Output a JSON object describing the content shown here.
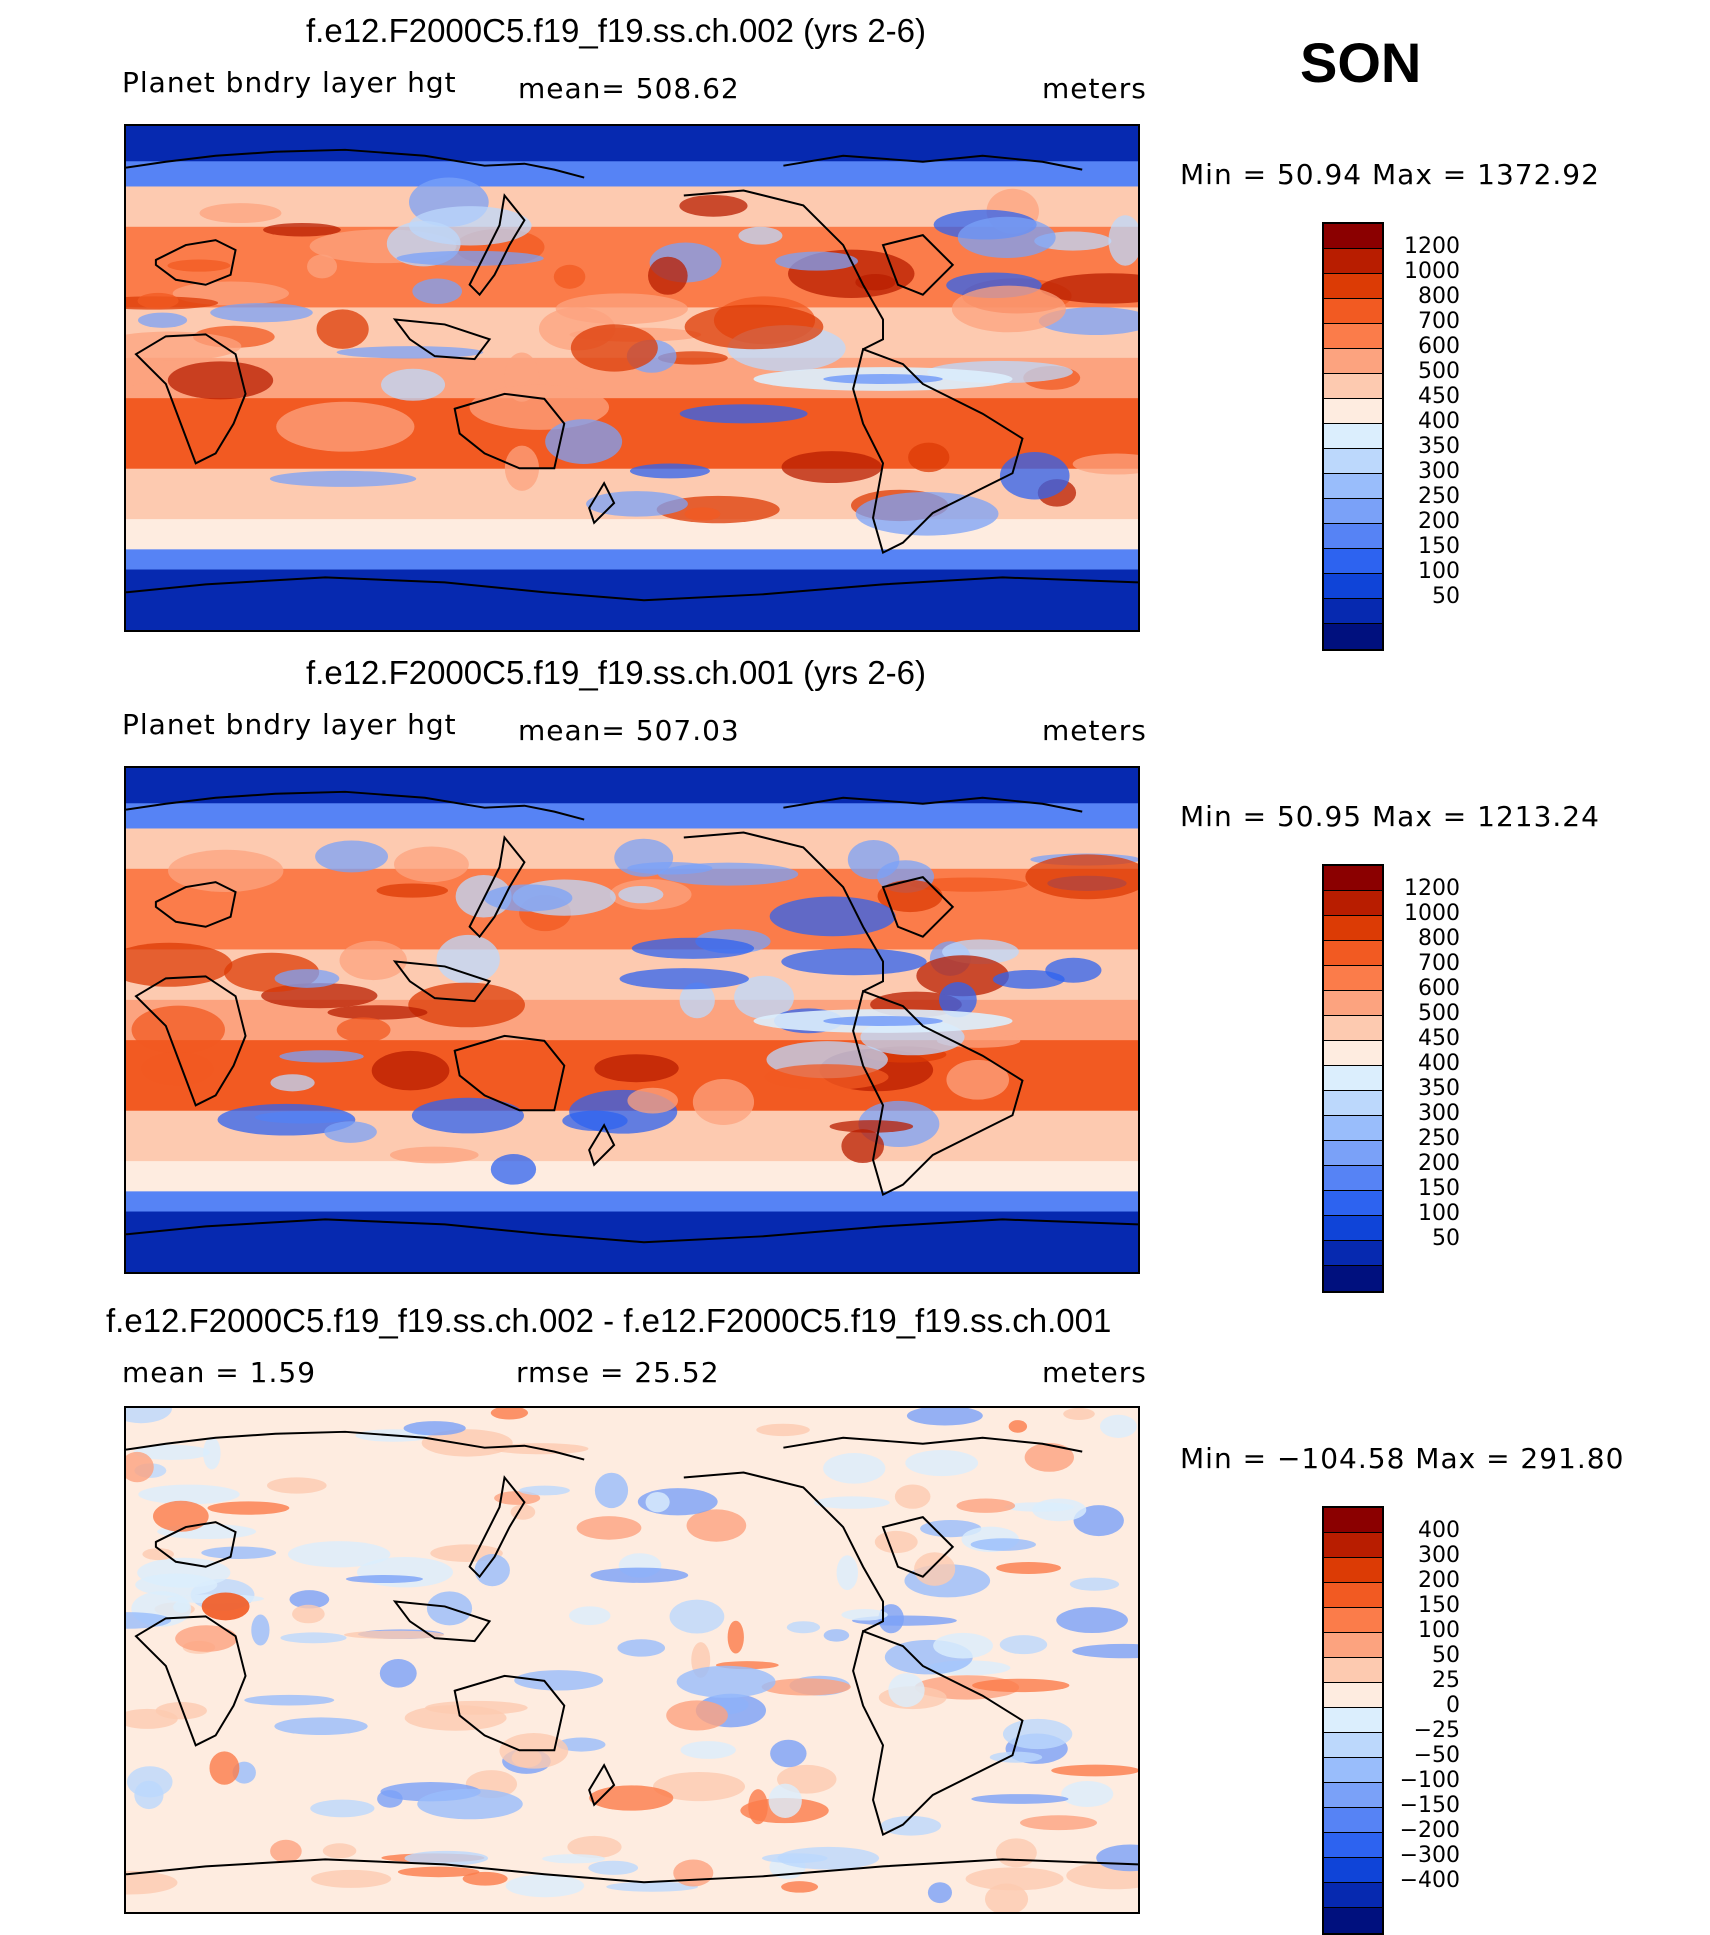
{
  "season": "SON",
  "panels": [
    {
      "title": "f.e12.F2000C5.f19_f19.ss.ch.002 (yrs 2-6)",
      "left_label": "Planet bndry layer hgt",
      "center_label": "mean=  508.62",
      "units": "meters",
      "minmax": "Min =   50.94  Max  =  1372.92",
      "field": "abs",
      "colorbar": {
        "colors": [
          "#8b0000",
          "#b81d00",
          "#dc3b05",
          "#f25a22",
          "#fb7c4a",
          "#fca37f",
          "#fdcab0",
          "#feece0",
          "#dbeefd",
          "#bcd8fc",
          "#99bdfb",
          "#7aa1f8",
          "#5683f5",
          "#2d63f0",
          "#0f44d8",
          "#0629b0",
          "#00107e"
        ],
        "labels": [
          "1200",
          "1000",
          "800",
          "700",
          "600",
          "500",
          "450",
          "400",
          "350",
          "300",
          "250",
          "200",
          "150",
          "100",
          "50"
        ]
      }
    },
    {
      "title": "f.e12.F2000C5.f19_f19.ss.ch.001 (yrs 2-6)",
      "left_label": "Planet bndry layer hgt",
      "center_label": "mean=  507.03",
      "units": "meters",
      "minmax": "Min =   50.95  Max  =  1213.24",
      "field": "abs",
      "colorbar": {
        "colors": [
          "#8b0000",
          "#b81d00",
          "#dc3b05",
          "#f25a22",
          "#fb7c4a",
          "#fca37f",
          "#fdcab0",
          "#feece0",
          "#dbeefd",
          "#bcd8fc",
          "#99bdfb",
          "#7aa1f8",
          "#5683f5",
          "#2d63f0",
          "#0f44d8",
          "#0629b0",
          "#00107e"
        ],
        "labels": [
          "1200",
          "1000",
          "800",
          "700",
          "600",
          "500",
          "450",
          "400",
          "350",
          "300",
          "250",
          "200",
          "150",
          "100",
          "50"
        ]
      }
    },
    {
      "title": "f.e12.F2000C5.f19_f19.ss.ch.002 - f.e12.F2000C5.f19_f19.ss.ch.001",
      "left_label": "mean =     1.59",
      "center_label": "rmse  =    25.52",
      "units": "meters",
      "minmax": "Min  =  −104.58  Max  =  291.80",
      "field": "diff",
      "colorbar": {
        "colors": [
          "#8b0000",
          "#b81d00",
          "#dc3b05",
          "#f25a22",
          "#fb7c4a",
          "#fca37f",
          "#fdcab0",
          "#feece0",
          "#dbeefd",
          "#bcd8fc",
          "#99bdfb",
          "#7aa1f8",
          "#5683f5",
          "#2d63f0",
          "#0f44d8",
          "#0629b0",
          "#00107e"
        ],
        "labels": [
          "400",
          "300",
          "200",
          "150",
          "100",
          "50",
          "25",
          "0",
          "−25",
          "−50",
          "−100",
          "−150",
          "−200",
          "−300",
          "−400"
        ]
      }
    }
  ]
}
